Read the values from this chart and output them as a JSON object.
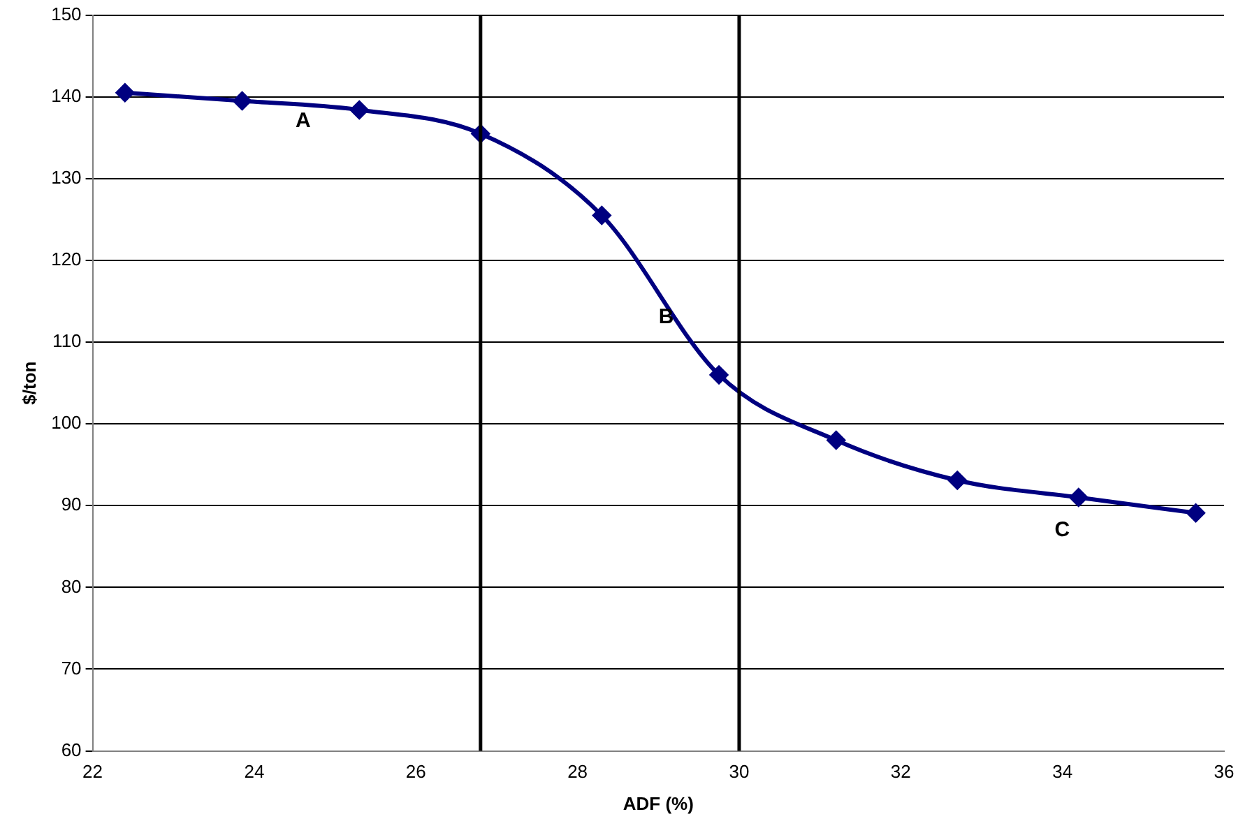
{
  "chart_data": {
    "type": "line",
    "xlabel": "ADF (%)",
    "ylabel": "$/ton",
    "x": [
      22.4,
      23.85,
      25.3,
      26.8,
      28.3,
      29.75,
      31.2,
      32.7,
      34.2,
      35.65
    ],
    "series": [
      {
        "color": "#000080",
        "values": [
          140.5,
          139.5,
          138.4,
          135.5,
          125.5,
          106,
          98,
          93.1,
          91,
          89.1
        ]
      }
    ],
    "xlim": [
      22,
      36
    ],
    "xticks": [
      22,
      24,
      26,
      28,
      30,
      32,
      34,
      36
    ],
    "ylim": [
      60,
      150
    ],
    "yticks": [
      60,
      70,
      80,
      90,
      100,
      110,
      120,
      130,
      140,
      150
    ],
    "grid": "y",
    "legend": false,
    "marker": "diamond",
    "line_style": "solid",
    "ref_lines": [
      {
        "axis": "x",
        "value": 26.8,
        "color": "#000000"
      },
      {
        "axis": "x",
        "value": 30,
        "color": "#000000"
      }
    ],
    "annotations": [
      "A",
      "B",
      "C"
    ]
  }
}
